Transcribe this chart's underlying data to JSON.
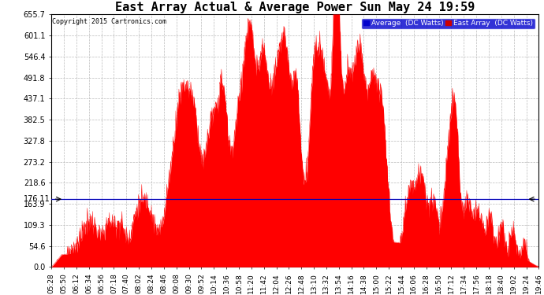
{
  "title": "East Array Actual & Average Power Sun May 24 19:59",
  "copyright": "Copyright 2015 Cartronics.com",
  "avg_line_y": 176.11,
  "y_right_ticks": [
    0.0,
    54.6,
    109.3,
    163.9,
    218.6,
    273.2,
    327.8,
    382.5,
    437.1,
    491.8,
    546.4,
    601.1,
    655.7
  ],
  "y_max": 655.7,
  "y_min": 0.0,
  "x_labels": [
    "05:28",
    "05:50",
    "06:12",
    "06:34",
    "06:56",
    "07:18",
    "07:40",
    "08:02",
    "08:24",
    "08:46",
    "09:08",
    "09:30",
    "09:52",
    "10:14",
    "10:36",
    "10:58",
    "11:20",
    "11:42",
    "12:04",
    "12:26",
    "12:48",
    "13:10",
    "13:32",
    "13:54",
    "14:16",
    "14:38",
    "15:00",
    "15:22",
    "15:44",
    "16:06",
    "16:28",
    "16:50",
    "17:12",
    "17:34",
    "17:56",
    "18:18",
    "18:40",
    "19:02",
    "19:24",
    "19:46"
  ],
  "fill_color": "#FF0000",
  "avg_line_color": "#0000FF",
  "horiz_line_color": "#000000",
  "legend_avg_bg": "#0000CC",
  "legend_east_bg": "#CC0000",
  "background_color": "#FFFFFF",
  "grid_color": "#BBBBBB",
  "title_fontsize": 11,
  "tick_fontsize": 7,
  "figwidth": 6.9,
  "figheight": 3.75,
  "dpi": 100
}
